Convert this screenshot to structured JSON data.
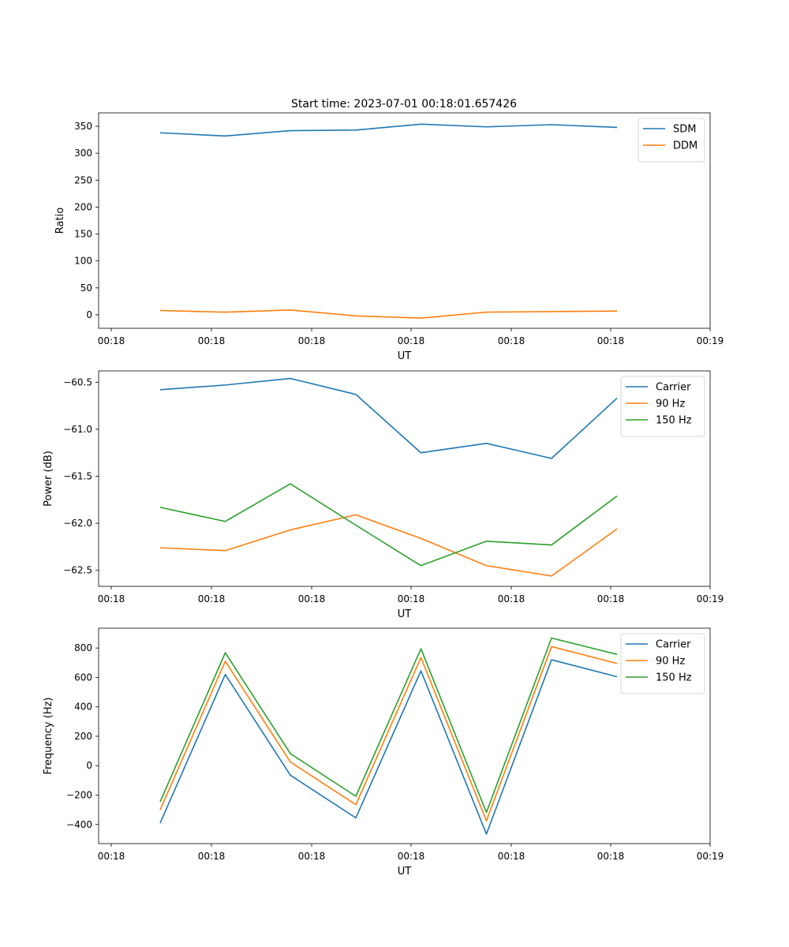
{
  "figure_title": "Start time: 2023-07-01 00:18:01.657426",
  "colors": {
    "c0": "#1f77b4",
    "c1": "#ff7f0e",
    "c2": "#2ca02c"
  },
  "chart_data": [
    {
      "type": "line",
      "title": "Start time: 2023-07-01 00:18:01.657426",
      "xlabel": "UT",
      "ylabel": "Ratio",
      "xticks": [
        "00:18",
        "00:18",
        "00:18",
        "00:18",
        "00:18",
        "00:18",
        "00:18"
      ],
      "xticks_extra": "00:19",
      "yticks": [
        0,
        50,
        100,
        150,
        200,
        250,
        300,
        350
      ],
      "ylim": [
        -25,
        375
      ],
      "legend": "upper right",
      "x_index": [
        0,
        1,
        2,
        3,
        4,
        5,
        6,
        7
      ],
      "series": [
        {
          "name": "SDM",
          "color": "#1f77b4",
          "values": [
            338,
            332,
            342,
            343,
            354,
            349,
            353,
            348
          ]
        },
        {
          "name": "DDM",
          "color": "#ff7f0e",
          "values": [
            8,
            5,
            9,
            -2,
            -6,
            5,
            6,
            7
          ]
        }
      ]
    },
    {
      "type": "line",
      "title": "",
      "xlabel": "UT",
      "ylabel": "Power (dB)",
      "xticks": [
        "00:18",
        "00:18",
        "00:18",
        "00:18",
        "00:18",
        "00:18",
        "00:18"
      ],
      "xticks_extra": "00:19",
      "yticks": [
        -62.5,
        -62.0,
        -61.5,
        -61.0,
        -60.5
      ],
      "ytick_labels": [
        "−62.5",
        "−62.0",
        "−61.5",
        "−61.0",
        "−60.5"
      ],
      "ylim": [
        -62.67,
        -60.38
      ],
      "legend": "upper right",
      "x_index": [
        0,
        1,
        2,
        3,
        4,
        5,
        6,
        7
      ],
      "series": [
        {
          "name": "Carrier",
          "color": "#1f77b4",
          "values": [
            -60.58,
            -60.53,
            -60.46,
            -60.63,
            -61.25,
            -61.15,
            -61.31,
            -60.67
          ]
        },
        {
          "name": "90 Hz",
          "color": "#ff7f0e",
          "values": [
            -62.26,
            -62.29,
            -62.07,
            -61.91,
            -62.16,
            -62.45,
            -62.56,
            -62.06
          ]
        },
        {
          "name": "150 Hz",
          "color": "#2ca02c",
          "values": [
            -61.83,
            -61.98,
            -61.58,
            -62.02,
            -62.45,
            -62.19,
            -62.23,
            -61.71
          ]
        }
      ]
    },
    {
      "type": "line",
      "title": "",
      "xlabel": "UT",
      "ylabel": "Frequency (Hz)",
      "xticks": [
        "00:18",
        "00:18",
        "00:18",
        "00:18",
        "00:18",
        "00:18",
        "00:18"
      ],
      "xticks_extra": "00:19",
      "yticks": [
        -400,
        -200,
        0,
        200,
        400,
        600,
        800
      ],
      "ytick_labels": [
        "−400",
        "−200",
        "0",
        "200",
        "400",
        "600",
        "800"
      ],
      "ylim": [
        -530,
        935
      ],
      "legend": "upper right",
      "x_index": [
        0,
        1,
        2,
        3,
        4,
        5,
        6,
        7
      ],
      "series": [
        {
          "name": "Carrier",
          "color": "#1f77b4",
          "values": [
            -390,
            620,
            -65,
            -355,
            645,
            -465,
            720,
            605
          ]
        },
        {
          "name": "90 Hz",
          "color": "#ff7f0e",
          "values": [
            -300,
            710,
            25,
            -265,
            735,
            -375,
            810,
            695
          ]
        },
        {
          "name": "150 Hz",
          "color": "#2ca02c",
          "values": [
            -245,
            768,
            82,
            -208,
            795,
            -318,
            868,
            757
          ]
        }
      ]
    }
  ]
}
